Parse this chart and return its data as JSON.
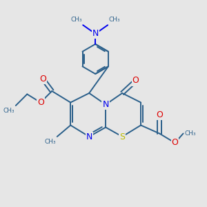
{
  "bg_color": "#e6e6e6",
  "bond_color": "#2a5f8a",
  "N_color": "#0000ee",
  "O_color": "#dd0000",
  "S_color": "#bbbb00",
  "lw": 1.4,
  "fs": 8.5,
  "xlim": [
    0,
    10
  ],
  "ylim": [
    0,
    10
  ]
}
